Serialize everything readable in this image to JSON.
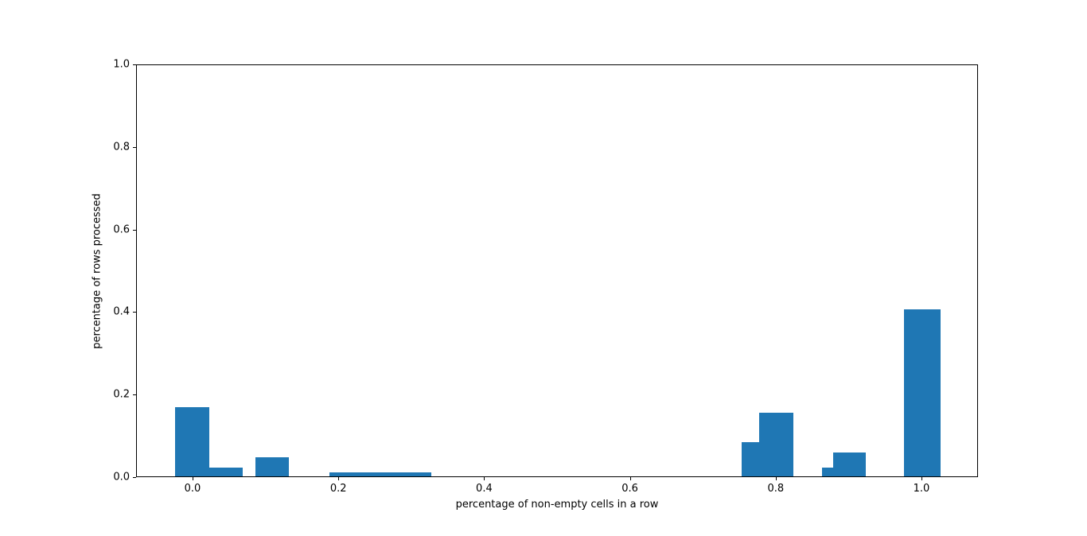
{
  "chart_data": {
    "type": "bar",
    "subtype": "histogram",
    "title": "",
    "xlabel": "percentage of non-empty cells in a row",
    "ylabel": "percentage of rows processed",
    "xlim": [
      -0.0775,
      1.0775
    ],
    "ylim": [
      0,
      1.0
    ],
    "grid": false,
    "legend": false,
    "bar_color": "#1f77b4",
    "xticks": [
      {
        "value": 0.0,
        "label": "0.0"
      },
      {
        "value": 0.2,
        "label": "0.2"
      },
      {
        "value": 0.4,
        "label": "0.4"
      },
      {
        "value": 0.6,
        "label": "0.6"
      },
      {
        "value": 0.8,
        "label": "0.8"
      },
      {
        "value": 1.0,
        "label": "1.0"
      }
    ],
    "yticks": [
      {
        "value": 0.0,
        "label": "0.0"
      },
      {
        "value": 0.2,
        "label": "0.2"
      },
      {
        "value": 0.4,
        "label": "0.4"
      },
      {
        "value": 0.6,
        "label": "0.6"
      },
      {
        "value": 0.8,
        "label": "0.8"
      },
      {
        "value": 1.0,
        "label": "1.0"
      }
    ],
    "bars": [
      {
        "x0": -0.025,
        "x1": 0.022,
        "height": 0.168
      },
      {
        "x0": 0.022,
        "x1": 0.068,
        "height": 0.022
      },
      {
        "x0": 0.085,
        "x1": 0.131,
        "height": 0.047
      },
      {
        "x0": 0.187,
        "x1": 0.327,
        "height": 0.01
      },
      {
        "x0": 0.752,
        "x1": 0.776,
        "height": 0.082
      },
      {
        "x0": 0.776,
        "x1": 0.823,
        "height": 0.154
      },
      {
        "x0": 0.862,
        "x1": 0.878,
        "height": 0.022
      },
      {
        "x0": 0.878,
        "x1": 0.922,
        "height": 0.058
      },
      {
        "x0": 0.975,
        "x1": 1.025,
        "height": 0.405
      }
    ]
  }
}
